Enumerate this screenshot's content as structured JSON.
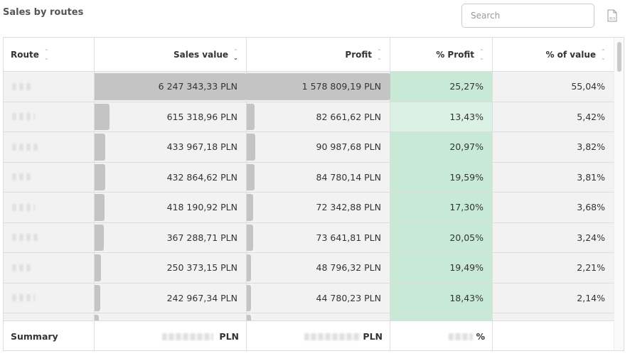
{
  "title": "Sales by routes",
  "search": {
    "placeholder": "Search"
  },
  "export_icon": "xls-export-icon",
  "columns": [
    {
      "label": "Route"
    },
    {
      "label": "Sales value"
    },
    {
      "label": "Profit"
    },
    {
      "label": "% Profit"
    },
    {
      "label": "% of value"
    }
  ],
  "sort": {
    "column": "Sales value",
    "direction": "descending"
  },
  "colors": {
    "bar": "#c4c4c4",
    "profit_high": "#c8e9d6",
    "profit_low": "#dcf1e5",
    "row_bg": "#f2f2f2"
  },
  "rows": [
    {
      "sales": "6 247 343,33 PLN",
      "profit": "1 578 809,19 PLN",
      "pct_profit": "25,27%",
      "pct_value": "55,04%",
      "share": 1.0,
      "profit_share": 1.0,
      "profit_shade": "high"
    },
    {
      "sales": "615 318,96 PLN",
      "profit": "82 661,62 PLN",
      "pct_profit": "13,43%",
      "pct_value": "5,42%",
      "share": 0.0985,
      "profit_share": 0.0524,
      "profit_shade": "low"
    },
    {
      "sales": "433 967,18 PLN",
      "profit": "90 987,68 PLN",
      "pct_profit": "20,97%",
      "pct_value": "3,82%",
      "share": 0.0695,
      "profit_share": 0.0576,
      "profit_shade": "high"
    },
    {
      "sales": "432 864,62 PLN",
      "profit": "84 780,14 PLN",
      "pct_profit": "19,59%",
      "pct_value": "3,81%",
      "share": 0.0693,
      "profit_share": 0.0537,
      "profit_shade": "high"
    },
    {
      "sales": "418 190,92 PLN",
      "profit": "72 342,88 PLN",
      "pct_profit": "17,30%",
      "pct_value": "3,68%",
      "share": 0.0669,
      "profit_share": 0.0458,
      "profit_shade": "high"
    },
    {
      "sales": "367 288,71 PLN",
      "profit": "73 641,81 PLN",
      "pct_profit": "20,05%",
      "pct_value": "3,24%",
      "share": 0.0588,
      "profit_share": 0.0466,
      "profit_shade": "high"
    },
    {
      "sales": "250 373,15 PLN",
      "profit": "48 796,32 PLN",
      "pct_profit": "19,49%",
      "pct_value": "2,21%",
      "share": 0.0401,
      "profit_share": 0.0309,
      "profit_shade": "high"
    },
    {
      "sales": "242 967,34 PLN",
      "profit": "44 780,23 PLN",
      "pct_profit": "18,43%",
      "pct_value": "2,14%",
      "share": 0.0389,
      "profit_share": 0.0284,
      "profit_shade": "high"
    },
    {
      "sales": "",
      "profit": "",
      "pct_profit": "",
      "pct_value": "",
      "share": 0.03,
      "profit_share": 0.025,
      "profit_shade": "high"
    }
  ],
  "summary": {
    "label": "Summary",
    "sales_unit": "PLN",
    "profit_unit": "PLN",
    "pct_unit": "%"
  }
}
